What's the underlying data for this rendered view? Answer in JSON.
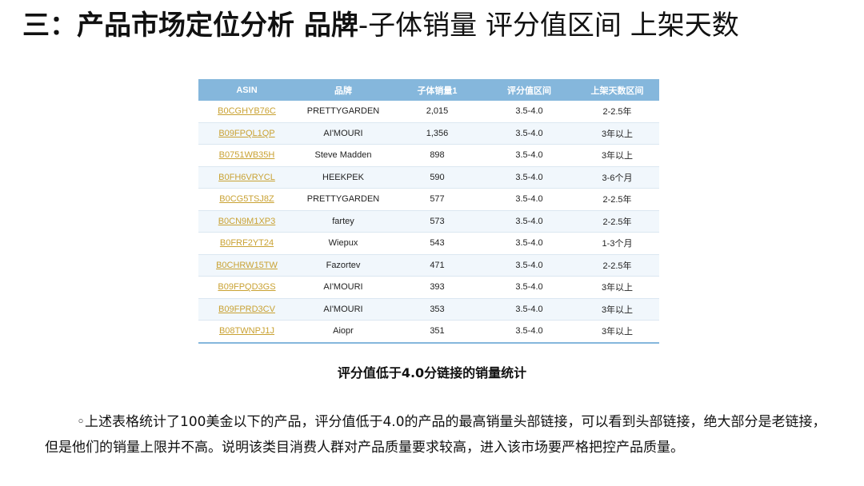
{
  "title": {
    "bold_part": "三：产品市场定位分析 品牌",
    "normal_part": "-子体销量 评分值区间 上架天数"
  },
  "table": {
    "headers": [
      "ASIN",
      "品牌",
      "子体销量1",
      "评分值区间",
      "上架天数区间"
    ],
    "rows": [
      [
        "B0CGHYB76C",
        "PRETTYGARDEN",
        "2,015",
        "3.5-4.0",
        "2-2.5年"
      ],
      [
        "B09FPQL1QP",
        "AI'MOURI",
        "1,356",
        "3.5-4.0",
        "3年以上"
      ],
      [
        "B0751WB35H",
        "Steve Madden",
        "898",
        "3.5-4.0",
        "3年以上"
      ],
      [
        "B0FH6VRYCL",
        "HEEKPEK",
        "590",
        "3.5-4.0",
        "3-6个月"
      ],
      [
        "B0CG5TSJ8Z",
        "PRETTYGARDEN",
        "577",
        "3.5-4.0",
        "2-2.5年"
      ],
      [
        "B0CN9M1XP3",
        "fartey",
        "573",
        "3.5-4.0",
        "2-2.5年"
      ],
      [
        "B0FRF2YT24",
        "Wiepux",
        "543",
        "3.5-4.0",
        "1-3个月"
      ],
      [
        "B0CHRW15TW",
        "Fazortev",
        "471",
        "3.5-4.0",
        "2-2.5年"
      ],
      [
        "B09FPQD3GS",
        "AI'MOURI",
        "393",
        "3.5-4.0",
        "3年以上"
      ],
      [
        "B09FPRD3CV",
        "AI'MOURI",
        "353",
        "3.5-4.0",
        "3年以上"
      ],
      [
        "B08TWNPJ1J",
        "Aiopr",
        "351",
        "3.5-4.0",
        "3年以上"
      ]
    ]
  },
  "caption": "评分值低于4.0分链接的销量统计",
  "body": {
    "bullet": "◦",
    "text": "上述表格统计了100美金以下的产品，评分值低于4.0的产品的最高销量头部链接，可以看到头部链接，绝大部分是老链接，但是他们的销量上限并不高。说明该类目消费人群对产品质量要求较高，进入该市场要严格把控产品质量。"
  },
  "colors": {
    "header_bg": "#85b7dc",
    "link": "#c9a233",
    "row_alt": "#f1f7fc"
  }
}
